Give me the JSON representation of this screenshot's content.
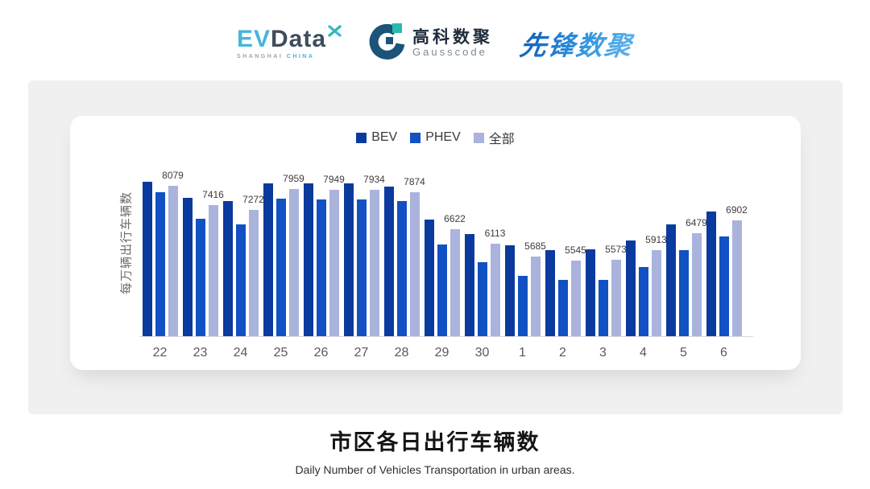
{
  "header": {
    "evdata": {
      "ev": "EV",
      "data": "Data",
      "sub1": "SHANGHAI",
      "sub2": "CHINA"
    },
    "gausscode": {
      "cn": "高科数聚",
      "en": "Gausscode"
    },
    "pioneer": {
      "cn": "先锋数聚"
    }
  },
  "chart_data": {
    "type": "bar",
    "title": "市区各日出行车辆数",
    "subtitle": "Daily Number of Vehicles Transportation in urban areas.",
    "ylabel": "每万辆出行车辆数",
    "xlabel": "",
    "categories": [
      "22",
      "23",
      "24",
      "25",
      "26",
      "27",
      "28",
      "29",
      "30",
      "1",
      "2",
      "3",
      "4",
      "5",
      "6"
    ],
    "series": [
      {
        "name": "BEV",
        "color": "#0b3a9e",
        "values": [
          8220,
          7680,
          7565,
          8170,
          8150,
          8150,
          8060,
          6930,
          6450,
          6070,
          5905,
          5930,
          6230,
          6775,
          7220
        ]
      },
      {
        "name": "PHEV",
        "color": "#1151c4",
        "values": [
          7855,
          6970,
          6765,
          7645,
          7625,
          7610,
          7565,
          6095,
          5500,
          5030,
          4910,
          4890,
          5330,
          5915,
          6360
        ]
      },
      {
        "name": "全部",
        "color": "#aab3dc",
        "values": [
          8079,
          7416,
          7272,
          7959,
          7949,
          7934,
          7874,
          6622,
          6113,
          5685,
          5545,
          5573,
          5913,
          6479,
          6902
        ]
      }
    ],
    "data_labels": [
      8079,
      7416,
      7272,
      7959,
      7949,
      7934,
      7874,
      6622,
      6113,
      5685,
      5545,
      5573,
      5913,
      6479,
      6902
    ],
    "data_labels_series": "全部",
    "ylim": [
      3000,
      8920
    ],
    "grid": false,
    "legend_position": "top",
    "colors": {
      "axis_line": "#d9d9d9",
      "x_tick": "#595959",
      "value_label": "#3d3d3d",
      "panel_bg": "#f0f0f1"
    }
  }
}
